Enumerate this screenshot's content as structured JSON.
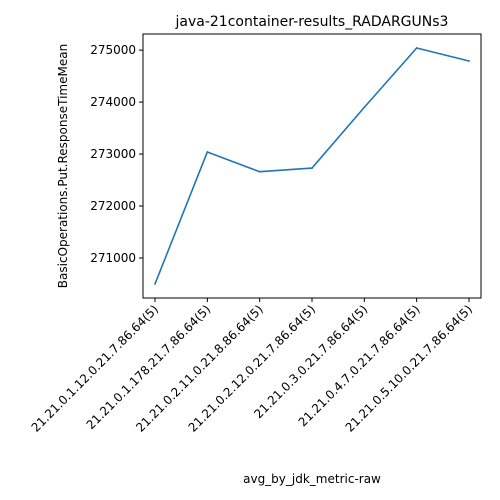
{
  "chart_data": {
    "type": "line",
    "title": "java-21container-results_RADARGUNs3",
    "xlabel": "avg_by_jdk_metric-raw",
    "ylabel": "BasicOperations.Put.ResponseTimeMean",
    "categories": [
      "21.21.0.1.12.0.21.7.86.64(5)",
      "21.21.0.1.178.21.7.86.64(5)",
      "21.21.0.2.11.0.21.8.86.64(5)",
      "21.21.0.2.12.0.21.7.86.64(5)",
      "21.21.0.3.0.21.7.86.64(5)",
      "21.21.0.4.7.0.21.7.86.64(5)",
      "21.21.0.5.10.0.21.7.86.64(5)"
    ],
    "series": [
      {
        "values": [
          270500,
          273040,
          272660,
          272730,
          273900,
          275040,
          274790
        ],
        "color": "#1f77b4"
      }
    ],
    "yticks": [
      271000,
      272000,
      273000,
      274000,
      275000
    ],
    "ylim": [
      270230,
      275310
    ],
    "grid": false,
    "legend": false
  }
}
